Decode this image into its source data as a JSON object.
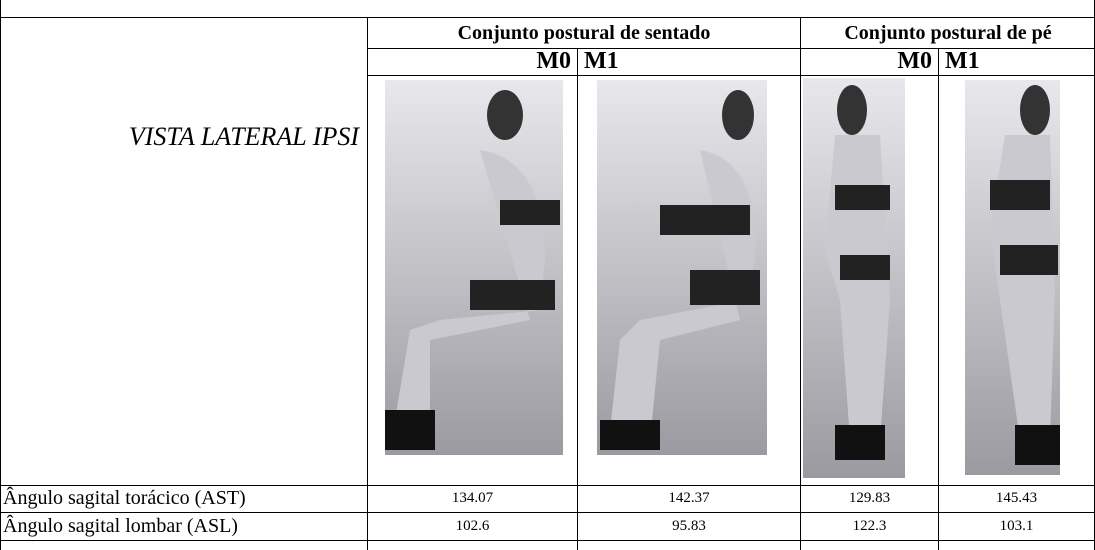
{
  "header": {
    "groups": [
      "Conjunto postural de sentado",
      "Conjunto postural de pé"
    ],
    "moments": [
      "M0",
      "M1",
      "M0",
      "M1"
    ]
  },
  "view_label": "VISTA LATERAL IPSI",
  "rows": [
    {
      "label": "Ângulo sagital torácico (AST)",
      "values": [
        134.07,
        142.37,
        129.83,
        145.43
      ]
    },
    {
      "label": "Ângulo sagital lombar (ASL)",
      "values": [
        102.6,
        95.83,
        122.3,
        103.1
      ]
    }
  ]
}
